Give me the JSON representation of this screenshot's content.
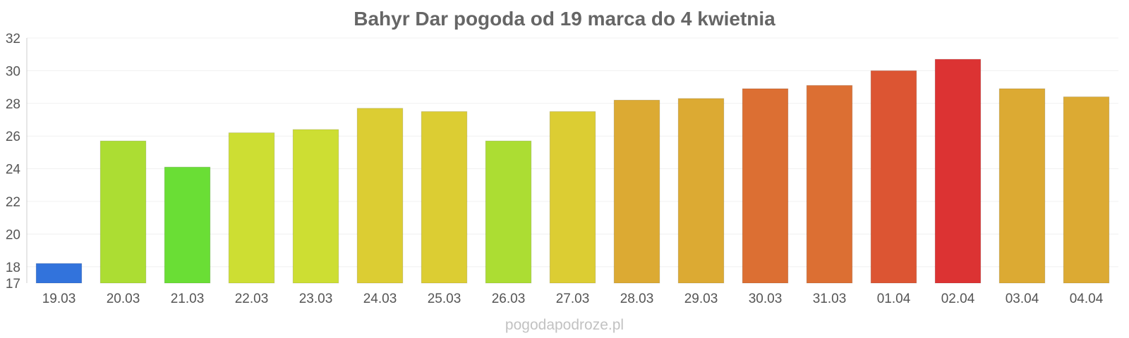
{
  "title": "Bahyr Dar pogoda od 19 marca do 4 kwietnia",
  "footer": "pogodapodroze.pl",
  "chart_data": {
    "type": "bar",
    "title": "Bahyr Dar pogoda od 19 marca do 4 kwietnia",
    "xlabel": "",
    "ylabel": "",
    "categories": [
      "19.03",
      "20.03",
      "21.03",
      "22.03",
      "23.03",
      "24.03",
      "25.03",
      "26.03",
      "27.03",
      "28.03",
      "29.03",
      "30.03",
      "31.03",
      "01.04",
      "02.04",
      "03.04",
      "04.04"
    ],
    "values": [
      18.2,
      25.7,
      24.1,
      26.2,
      26.4,
      27.7,
      27.5,
      25.7,
      27.5,
      28.2,
      28.3,
      28.9,
      29.1,
      30.0,
      30.7,
      28.9,
      28.4
    ],
    "colors": [
      "#3273dc",
      "#acdd33",
      "#6ade35",
      "#cdde33",
      "#cdde33",
      "#dccd33",
      "#dccd33",
      "#acdd33",
      "#dccd33",
      "#dcaa33",
      "#dcaa33",
      "#dc6f33",
      "#dc6f33",
      "#dc5533",
      "#dc3333",
      "#dcaa33",
      "#dcaa33"
    ],
    "ylim": [
      17,
      32
    ],
    "yticks": [
      17,
      18,
      20,
      22,
      24,
      26,
      28,
      30,
      32
    ],
    "grid": true,
    "legend": "none"
  }
}
